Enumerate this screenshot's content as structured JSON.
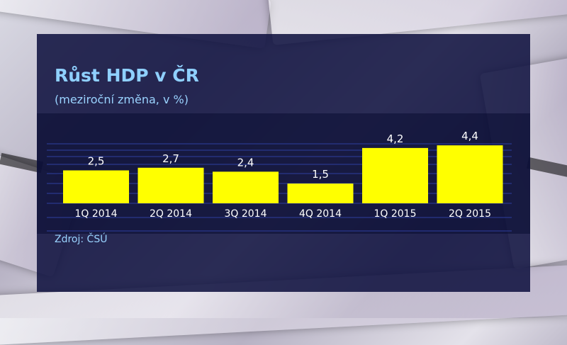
{
  "title": "Růst HDP v ČR",
  "subtitle": "(meziroční změna, v %)",
  "source": "Zdroj: ČSÚ",
  "colors": {
    "bar": "#ffff00",
    "text": "#ffffff",
    "accent": "#8fd0ff",
    "panel": "#101240"
  },
  "chart_data": {
    "type": "bar",
    "title": "Růst HDP v ČR",
    "subtitle": "(meziroční změna, v %)",
    "categories": [
      "1Q 2014",
      "2Q 2014",
      "3Q 2014",
      "4Q 2014",
      "1Q 2015",
      "2Q 2015"
    ],
    "values": [
      2.5,
      2.7,
      2.4,
      1.5,
      4.2,
      4.4
    ],
    "value_labels": [
      "2,5",
      "2,7",
      "2,4",
      "1,5",
      "4,2",
      "4,4"
    ],
    "ylim": [
      0,
      5
    ],
    "grid": true,
    "legend": "none"
  }
}
